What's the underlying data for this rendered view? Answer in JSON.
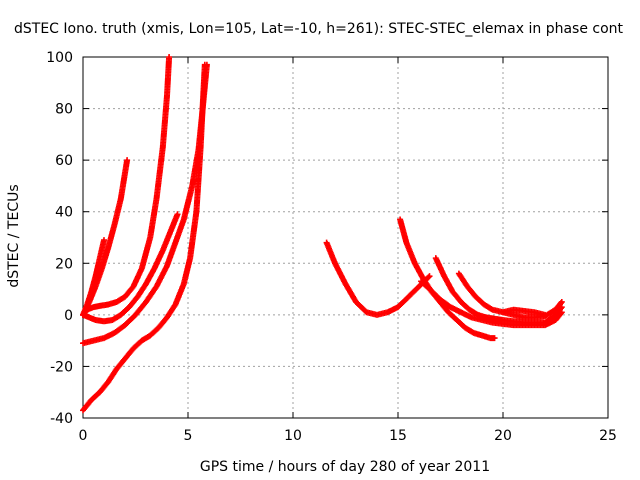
{
  "chart_data": {
    "type": "scatter",
    "title": "dSTEC Iono. truth (xmis, Lon=105, Lat=-10, h=261): STEC-STEC_elemax in phase cont",
    "xlabel": "GPS time / hours of day 280 of year 2011",
    "ylabel": "dSTEC  / TECUs",
    "xlim": [
      0,
      25
    ],
    "ylim": [
      -40,
      100
    ],
    "xticks": [
      0,
      5,
      10,
      15,
      20,
      25
    ],
    "yticks": [
      -40,
      -20,
      0,
      20,
      40,
      60,
      80,
      100
    ],
    "grid": true,
    "marker": "+",
    "color": "#ff0000",
    "series": [
      {
        "x": [
          0.0,
          0.2,
          0.5,
          0.8,
          1.2,
          1.6,
          2.0,
          2.4,
          2.8,
          3.2,
          3.5,
          3.8,
          4.0,
          4.1
        ],
        "y": [
          0,
          2,
          3,
          3.5,
          4,
          5,
          7,
          11,
          18,
          30,
          45,
          65,
          85,
          100
        ]
      },
      {
        "x": [
          0.0,
          0.2,
          0.4,
          0.6,
          0.8,
          1.0
        ],
        "y": [
          0,
          4,
          9,
          15,
          22,
          29
        ]
      },
      {
        "x": [
          0.0,
          0.3,
          0.6,
          0.9,
          1.2,
          1.5,
          1.8,
          2.1
        ],
        "y": [
          0,
          5,
          11,
          18,
          26,
          35,
          45,
          60
        ]
      },
      {
        "x": [
          0.0,
          0.3,
          0.6,
          1.0,
          1.4,
          1.8,
          2.2,
          2.6,
          3.0,
          3.4,
          3.8,
          4.2,
          4.5
        ],
        "y": [
          0,
          -1,
          -2,
          -2.5,
          -2,
          0,
          3,
          7,
          12,
          18,
          25,
          33,
          39
        ]
      },
      {
        "x": [
          0.0,
          0.5,
          1.0,
          1.5,
          2.0,
          2.5,
          3.0,
          3.5,
          4.0,
          4.4,
          4.8,
          5.2,
          5.5,
          5.7,
          5.9
        ],
        "y": [
          -11,
          -10,
          -9,
          -7,
          -4,
          0,
          5,
          11,
          19,
          28,
          37,
          50,
          64,
          80,
          97
        ]
      },
      {
        "x": [
          0.0,
          0.4,
          0.8,
          1.2,
          1.6,
          2.0,
          2.4,
          2.8,
          3.2,
          3.6,
          4.0,
          4.4,
          4.8,
          5.1,
          5.4,
          5.6,
          5.8
        ],
        "y": [
          -37,
          -33,
          -30,
          -26,
          -21,
          -17,
          -13,
          -10,
          -8,
          -5,
          -1,
          4,
          12,
          22,
          40,
          65,
          97
        ]
      },
      {
        "x": [
          11.6,
          12.0,
          12.5,
          13.0,
          13.5,
          14.0,
          14.5,
          15.0,
          15.5,
          16.0,
          16.5
        ],
        "y": [
          28,
          20,
          12,
          5,
          1,
          0,
          1,
          3,
          7,
          11,
          15
        ]
      },
      {
        "x": [
          15.1,
          15.4,
          15.8,
          16.2,
          16.6,
          17.0,
          17.4,
          17.8,
          18.2,
          18.6,
          19.0,
          19.4,
          19.6
        ],
        "y": [
          37,
          28,
          20,
          14,
          9,
          5,
          1,
          -2,
          -5,
          -7,
          -8,
          -9,
          -9
        ]
      },
      {
        "x": [
          16.1,
          16.5,
          17.0,
          17.5,
          18.0,
          18.5,
          19.0,
          19.5,
          20.0,
          20.5,
          21.0,
          21.5,
          22.0,
          22.5,
          22.8
        ],
        "y": [
          13,
          10,
          6,
          3,
          1,
          -1,
          -2,
          -3,
          -3.5,
          -4,
          -4,
          -4,
          -4,
          -2,
          1
        ]
      },
      {
        "x": [
          16.8,
          17.2,
          17.6,
          18.0,
          18.4,
          18.8,
          19.2,
          19.6,
          20.0,
          20.5,
          21.0,
          21.5,
          22.0,
          22.5,
          22.8
        ],
        "y": [
          22,
          15,
          9,
          5,
          2,
          0,
          -1,
          -1.5,
          -2,
          -2.5,
          -3,
          -3,
          -3,
          0,
          3
        ]
      },
      {
        "x": [
          17.9,
          18.3,
          18.7,
          19.1,
          19.5,
          20.0,
          20.5,
          21.0,
          21.5,
          22.0,
          22.5,
          22.8
        ],
        "y": [
          16,
          11,
          7,
          4,
          2,
          1,
          0,
          -1,
          -1,
          -0.5,
          2,
          5
        ]
      },
      {
        "x": [
          20.0,
          20.5,
          21.0,
          21.5,
          22.0
        ],
        "y": [
          1,
          2,
          1.5,
          1,
          0
        ]
      }
    ]
  }
}
